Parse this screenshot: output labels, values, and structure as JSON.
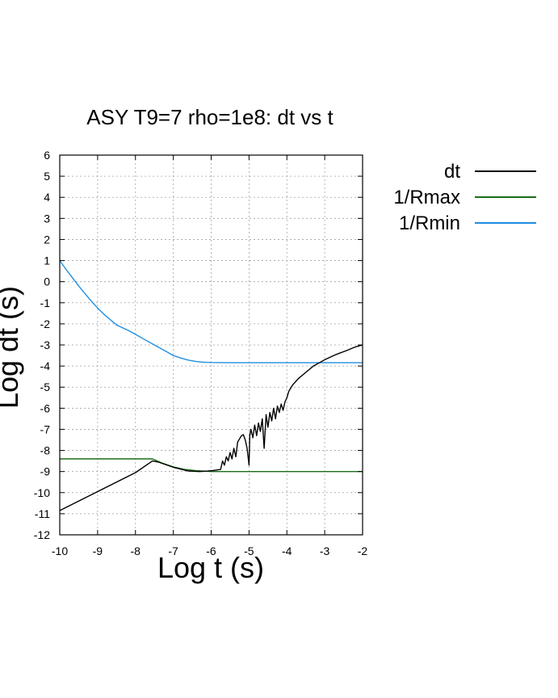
{
  "chart_data": {
    "type": "line",
    "title": "ASY T9=7 rho=1e8: dt vs t",
    "xlabel": "Log t (s)",
    "ylabel": "Log dt (s)",
    "xlim": [
      -10,
      -2
    ],
    "ylim": [
      -12,
      6
    ],
    "xticks": [
      "-10",
      "-9",
      "-8",
      "-7",
      "-6",
      "-5",
      "-4",
      "-3",
      "-2"
    ],
    "yticks": [
      "6",
      "5",
      "4",
      "3",
      "2",
      "1",
      "0",
      "-1",
      "-2",
      "-3",
      "-4",
      "-5",
      "-6",
      "-7",
      "-8",
      "-9",
      "-10",
      "-11",
      "-12"
    ],
    "grid": true,
    "legend_position": "outside-right-top",
    "series": [
      {
        "name": "dt",
        "color": "#000000",
        "x": [
          -10,
          -9,
          -8,
          -7.55,
          -7.4,
          -7.0,
          -6.6,
          -6.3,
          -6.1,
          -5.95,
          -5.75,
          -5.7,
          -5.65,
          -5.6,
          -5.55,
          -5.5,
          -5.45,
          -5.4,
          -5.35,
          -5.3,
          -5.2,
          -5.15,
          -5.1,
          -5.05,
          -5.0,
          -4.98,
          -4.95,
          -4.9,
          -4.85,
          -4.8,
          -4.75,
          -4.7,
          -4.65,
          -4.6,
          -4.55,
          -4.5,
          -4.45,
          -4.4,
          -4.35,
          -4.3,
          -4.25,
          -4.2,
          -4.15,
          -4.1,
          -4.05,
          -4.0,
          -3.95,
          -3.85,
          -3.7,
          -3.5,
          -3.3,
          -3.0,
          -2.7,
          -2.4,
          -2.2,
          -2.0
        ],
        "y": [
          -10.85,
          -9.95,
          -9.05,
          -8.5,
          -8.55,
          -8.8,
          -8.98,
          -9.0,
          -8.98,
          -8.95,
          -8.9,
          -8.5,
          -8.7,
          -8.3,
          -8.5,
          -8.1,
          -8.4,
          -7.9,
          -8.3,
          -7.6,
          -7.3,
          -7.25,
          -7.5,
          -7.9,
          -8.7,
          -7.3,
          -7.0,
          -7.4,
          -6.8,
          -7.3,
          -6.7,
          -7.1,
          -6.5,
          -7.9,
          -6.3,
          -6.9,
          -6.2,
          -6.6,
          -6.0,
          -6.5,
          -5.9,
          -6.2,
          -5.8,
          -6.1,
          -5.7,
          -5.5,
          -5.2,
          -4.9,
          -4.6,
          -4.3,
          -4.0,
          -3.7,
          -3.45,
          -3.25,
          -3.1,
          -3.0
        ]
      },
      {
        "name": "1/Rmax",
        "color": "#1a6d1a",
        "x": [
          -10,
          -9,
          -8,
          -7.55,
          -7.3,
          -7.0,
          -6.7,
          -6.4,
          -6.2,
          -6.0,
          -5.0,
          -4.0,
          -3.0,
          -2.0
        ],
        "y": [
          -8.4,
          -8.4,
          -8.4,
          -8.4,
          -8.6,
          -8.78,
          -8.9,
          -8.96,
          -8.98,
          -9.0,
          -9.0,
          -9.0,
          -9.0,
          -9.0
        ]
      },
      {
        "name": "1/Rmin",
        "color": "#1f8fe0",
        "x": [
          -10,
          -9.8,
          -9.5,
          -9.2,
          -9.0,
          -8.8,
          -8.5,
          -8.2,
          -8.0,
          -7.8,
          -7.5,
          -7.2,
          -7.0,
          -6.8,
          -6.6,
          -6.4,
          -6.2,
          -6.0,
          -5.5,
          -5.0,
          -4.0,
          -3.0,
          -2.0
        ],
        "y": [
          1.0,
          0.5,
          -0.2,
          -0.85,
          -1.25,
          -1.6,
          -2.05,
          -2.3,
          -2.5,
          -2.7,
          -3.0,
          -3.3,
          -3.5,
          -3.62,
          -3.72,
          -3.78,
          -3.82,
          -3.83,
          -3.84,
          -3.84,
          -3.84,
          -3.84,
          -3.84
        ]
      }
    ]
  }
}
